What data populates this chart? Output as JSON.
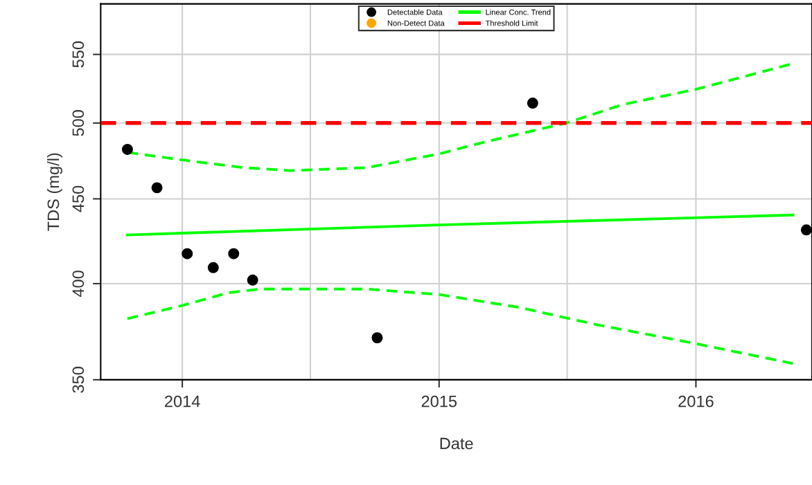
{
  "chart_data": {
    "type": "scatter",
    "xlabel": "Date",
    "ylabel": "TDS (mg/l)",
    "log": true,
    "grid": true,
    "legend": "top",
    "xlim": [
      "2013-09-07",
      "2016-06-14"
    ],
    "xticks": [
      {
        "value": "2014-01-01",
        "label": "2014"
      },
      {
        "value": "2014-07-02",
        "label": null
      },
      {
        "value": "2015-01-01",
        "label": "2015"
      },
      {
        "value": "2015-07-02",
        "label": null
      },
      {
        "value": "2016-01-01",
        "label": "2016"
      }
    ],
    "ylim": [
      350,
      590
    ],
    "yticks": [
      350,
      400,
      450,
      500,
      550
    ],
    "series": [
      {
        "name": "Detectable Data",
        "marker": "circle",
        "color": "#000000",
        "x": [
          "2013-10-15",
          "2013-11-26",
          "2014-01-08",
          "2014-02-14",
          "2014-03-15",
          "2014-04-11",
          "2014-10-05",
          "2015-05-14",
          "2016-06-06"
        ],
        "values": [
          482,
          457,
          417,
          409,
          417,
          402,
          371,
          514,
          431
        ]
      },
      {
        "name": "Non-Detect Data",
        "marker": "circle",
        "color": "#ffa500"
      },
      {
        "name": "Linear Conc. Trend",
        "type": "line",
        "line_style": "solid",
        "color": "#00ff00",
        "x": [
          "2013-10-15",
          "2015-01-01",
          "2016-05-18"
        ],
        "values": [
          428,
          434,
          440
        ]
      },
      {
        "type": "line",
        "line_style": "dashed",
        "color": "#00ff00",
        "x": [
          "2013-10-15",
          "2014-01-01",
          "2014-03-28",
          "2014-06-05",
          "2014-09-21",
          "2015-01-01",
          "2015-03-07",
          "2015-07-01",
          "2015-09-19",
          "2016-01-01",
          "2016-05-18"
        ],
        "values": [
          480,
          475,
          470,
          468,
          470,
          479,
          487,
          500,
          513,
          524,
          543
        ]
      },
      {
        "type": "line",
        "line_style": "dashed",
        "color": "#00ff00",
        "x": [
          "2013-10-15",
          "2014-01-01",
          "2014-03-08",
          "2014-04-22",
          "2014-09-21",
          "2015-01-01",
          "2015-04-25",
          "2015-08-11",
          "2016-01-01",
          "2016-05-18"
        ],
        "values": [
          381,
          388,
          395,
          397,
          397,
          394,
          387,
          378,
          368,
          358
        ]
      }
    ],
    "ref_lines": [
      {
        "axis": "y",
        "value": 500,
        "label": "Threshold Limit",
        "color": "#ff0000",
        "line_style": "dashed"
      }
    ]
  }
}
